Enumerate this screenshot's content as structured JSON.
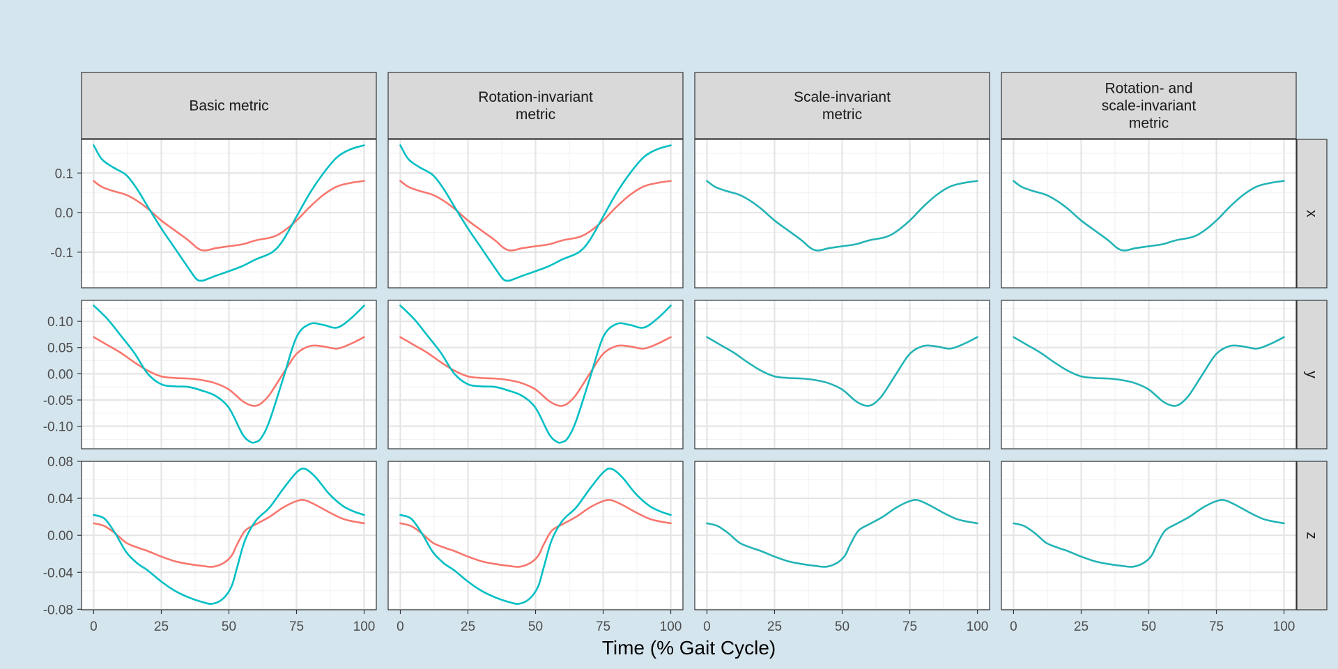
{
  "chart_data": {
    "type": "line",
    "xlabel": "Time (% Gait Cycle)",
    "ylabel": "",
    "x_ticks": [
      0,
      25,
      50,
      75,
      100
    ],
    "xlim": [
      -4.5,
      104.5
    ],
    "grid": true,
    "column_facets": [
      {
        "lines": [
          "Basic metric"
        ]
      },
      {
        "lines": [
          "Rotation-invariant",
          "metric"
        ]
      },
      {
        "lines": [
          "Scale-invariant",
          "metric"
        ]
      },
      {
        "lines": [
          "Rotation- and",
          "scale-invariant",
          "metric"
        ]
      }
    ],
    "row_facets": [
      {
        "label": "x",
        "ylim": [
          -0.19,
          0.185
        ],
        "y_ticks": [
          0.1,
          0.0,
          -0.1
        ],
        "y_tick_labels": [
          "0.1",
          "0.0",
          "-0.1"
        ],
        "series": [
          {
            "color": "#f8766d",
            "in_columns": [
              0,
              1
            ],
            "x": [
              0,
              3,
              7,
              12,
              16,
              20,
              25,
              30,
              35,
              38,
              40,
              42,
              45,
              50,
              55,
              60,
              66,
              70,
              75,
              80,
              85,
              90,
              95,
              100
            ],
            "y": [
              0.08,
              0.065,
              0.055,
              0.045,
              0.03,
              0.01,
              -0.02,
              -0.045,
              -0.07,
              -0.088,
              -0.095,
              -0.095,
              -0.09,
              -0.085,
              -0.08,
              -0.07,
              -0.062,
              -0.048,
              -0.02,
              0.015,
              0.045,
              0.066,
              0.075,
              0.08
            ]
          },
          {
            "color": "#00bfc4",
            "in_columns": [
              0,
              1
            ],
            "x": [
              0,
              3,
              7,
              12,
              16,
              20,
              25,
              30,
              35,
              38,
              40,
              42,
              45,
              50,
              55,
              60,
              66,
              70,
              75,
              80,
              85,
              90,
              95,
              100
            ],
            "y": [
              0.17,
              0.135,
              0.115,
              0.095,
              0.06,
              0.015,
              -0.04,
              -0.09,
              -0.14,
              -0.168,
              -0.172,
              -0.168,
              -0.16,
              -0.148,
              -0.135,
              -0.118,
              -0.1,
              -0.07,
              -0.01,
              0.05,
              0.1,
              0.14,
              0.16,
              0.17
            ]
          },
          {
            "color": "#22b3b5",
            "in_columns": [
              2,
              3
            ],
            "x": [
              0,
              3,
              7,
              12,
              16,
              20,
              25,
              30,
              35,
              38,
              40,
              42,
              45,
              50,
              55,
              60,
              66,
              70,
              75,
              80,
              85,
              90,
              95,
              100
            ],
            "y": [
              0.08,
              0.065,
              0.055,
              0.045,
              0.03,
              0.01,
              -0.02,
              -0.045,
              -0.07,
              -0.088,
              -0.095,
              -0.095,
              -0.09,
              -0.085,
              -0.08,
              -0.07,
              -0.062,
              -0.048,
              -0.02,
              0.015,
              0.045,
              0.066,
              0.075,
              0.08
            ]
          }
        ]
      },
      {
        "label": "y",
        "ylim": [
          -0.143,
          0.14
        ],
        "y_ticks": [
          0.1,
          0.05,
          0.0,
          -0.05,
          -0.1
        ],
        "y_tick_labels": [
          "0.10",
          "0.05",
          "0.00",
          "-0.05",
          "-0.10"
        ],
        "series": [
          {
            "color": "#f8766d",
            "in_columns": [
              0,
              1
            ],
            "x": [
              0,
              5,
              10,
              15,
              20,
              25,
              30,
              35,
              40,
              45,
              50,
              55,
              58,
              60,
              62,
              65,
              70,
              75,
              80,
              85,
              90,
              95,
              100
            ],
            "y": [
              0.07,
              0.055,
              0.04,
              0.022,
              0.006,
              -0.005,
              -0.008,
              -0.009,
              -0.012,
              -0.018,
              -0.03,
              -0.052,
              -0.06,
              -0.061,
              -0.056,
              -0.04,
              0.0,
              0.038,
              0.053,
              0.052,
              0.048,
              0.057,
              0.07
            ]
          },
          {
            "color": "#00bfc4",
            "in_columns": [
              0,
              1
            ],
            "x": [
              0,
              5,
              10,
              15,
              20,
              25,
              30,
              35,
              40,
              45,
              50,
              55,
              58,
              60,
              62,
              65,
              70,
              75,
              80,
              85,
              90,
              95,
              100
            ],
            "y": [
              0.13,
              0.105,
              0.073,
              0.04,
              0.0,
              -0.02,
              -0.024,
              -0.025,
              -0.032,
              -0.042,
              -0.065,
              -0.115,
              -0.13,
              -0.13,
              -0.122,
              -0.09,
              -0.01,
              0.07,
              0.095,
              0.093,
              0.088,
              0.105,
              0.13
            ]
          },
          {
            "color": "#22b3b5",
            "in_columns": [
              2,
              3
            ],
            "x": [
              0,
              5,
              10,
              15,
              20,
              25,
              30,
              35,
              40,
              45,
              50,
              55,
              58,
              60,
              62,
              65,
              70,
              75,
              80,
              85,
              90,
              95,
              100
            ],
            "y": [
              0.07,
              0.055,
              0.04,
              0.022,
              0.006,
              -0.005,
              -0.008,
              -0.009,
              -0.012,
              -0.018,
              -0.03,
              -0.052,
              -0.06,
              -0.061,
              -0.056,
              -0.04,
              0.0,
              0.038,
              0.053,
              0.052,
              0.048,
              0.057,
              0.07
            ]
          }
        ]
      },
      {
        "label": "z",
        "ylim": [
          -0.0805,
          0.08
        ],
        "y_ticks": [
          0.08,
          0.04,
          0.0,
          -0.04,
          -0.08
        ],
        "y_tick_labels": [
          "0.08",
          "0.04",
          "0.00",
          "-0.04",
          "-0.08"
        ],
        "series": [
          {
            "color": "#f8766d",
            "in_columns": [
              0,
              1
            ],
            "x": [
              0,
              4,
              8,
              12,
              16,
              20,
              25,
              30,
              35,
              40,
              44,
              48,
              51,
              53,
              56,
              60,
              65,
              70,
              75,
              78,
              82,
              87,
              92,
              96,
              100
            ],
            "y": [
              0.013,
              0.01,
              0.002,
              -0.008,
              -0.013,
              -0.017,
              -0.023,
              -0.028,
              -0.031,
              -0.033,
              -0.034,
              -0.03,
              -0.022,
              -0.01,
              0.005,
              0.012,
              0.02,
              0.03,
              0.037,
              0.038,
              0.033,
              0.025,
              0.018,
              0.015,
              0.013
            ]
          },
          {
            "color": "#00bfc4",
            "in_columns": [
              0,
              1
            ],
            "x": [
              0,
              4,
              8,
              12,
              16,
              20,
              25,
              30,
              35,
              40,
              44,
              48,
              51,
              53,
              56,
              60,
              65,
              70,
              75,
              78,
              82,
              87,
              92,
              96,
              100
            ],
            "y": [
              0.022,
              0.018,
              0.002,
              -0.018,
              -0.03,
              -0.038,
              -0.05,
              -0.06,
              -0.067,
              -0.072,
              -0.074,
              -0.068,
              -0.055,
              -0.035,
              -0.005,
              0.016,
              0.03,
              0.05,
              0.068,
              0.072,
              0.063,
              0.045,
              0.032,
              0.026,
              0.022
            ]
          },
          {
            "color": "#22b3b5",
            "in_columns": [
              2,
              3
            ],
            "x": [
              0,
              4,
              8,
              12,
              16,
              20,
              25,
              30,
              35,
              40,
              44,
              48,
              51,
              53,
              56,
              60,
              65,
              70,
              75,
              78,
              82,
              87,
              92,
              96,
              100
            ],
            "y": [
              0.013,
              0.01,
              0.002,
              -0.008,
              -0.013,
              -0.017,
              -0.023,
              -0.028,
              -0.031,
              -0.033,
              -0.034,
              -0.03,
              -0.022,
              -0.01,
              0.005,
              0.012,
              0.02,
              0.03,
              0.037,
              0.038,
              0.033,
              0.025,
              0.018,
              0.015,
              0.013
            ]
          }
        ]
      }
    ]
  }
}
